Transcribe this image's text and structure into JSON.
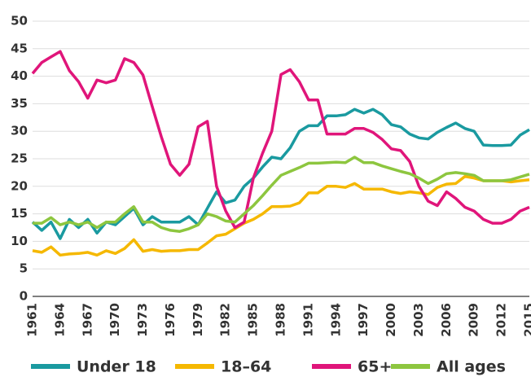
{
  "chart_data": {
    "type": "line",
    "x": [
      1961,
      1962,
      1963,
      1964,
      1965,
      1966,
      1967,
      1968,
      1969,
      1970,
      1971,
      1972,
      1973,
      1974,
      1975,
      1976,
      1977,
      1978,
      1979,
      1980,
      1981,
      1982,
      1983,
      1984,
      1985,
      1986,
      1987,
      1988,
      1989,
      1990,
      1991,
      1992,
      1993,
      1994,
      1995,
      1996,
      1997,
      1998,
      1999,
      2000,
      2001,
      2002,
      2003,
      2004,
      2005,
      2006,
      2007,
      2008,
      2009,
      2010,
      2011,
      2012,
      2013,
      2014,
      2015
    ],
    "series": [
      {
        "name": "Under 18",
        "color": "#1a9aa0",
        "values": [
          13.5,
          12,
          13.5,
          10.5,
          14,
          12.5,
          14,
          11.5,
          13.5,
          13,
          14.5,
          16,
          13,
          14.5,
          13.5,
          13.5,
          13.5,
          14.5,
          13,
          16,
          19,
          17,
          17.5,
          20,
          21.5,
          23.5,
          25.3,
          25,
          27,
          30,
          31,
          31,
          32.8,
          32.8,
          33,
          34,
          33.3,
          34,
          33,
          31.2,
          30.8,
          29.5,
          28.8,
          28.6,
          29.8,
          30.7,
          31.5,
          30.5,
          30,
          27.5,
          27.4,
          27.4,
          27.5,
          29.3,
          30.3
        ]
      },
      {
        "name": "18–64",
        "color": "#f5b800",
        "values": [
          8.3,
          8,
          9,
          7.5,
          7.7,
          7.8,
          8,
          7.5,
          8.3,
          7.8,
          8.7,
          10.3,
          8.2,
          8.5,
          8.2,
          8.3,
          8.3,
          8.5,
          8.5,
          9.7,
          11,
          11.3,
          12.3,
          13.3,
          14,
          15,
          16.3,
          16.3,
          16.4,
          17,
          18.8,
          18.8,
          20,
          20,
          19.8,
          20.5,
          19.5,
          19.5,
          19.5,
          19,
          18.7,
          19,
          18.8,
          18.5,
          19.8,
          20.4,
          20.5,
          21.8,
          21.5,
          21,
          21,
          21,
          20.8,
          21,
          21.2
        ]
      },
      {
        "name": "65+",
        "color": "#e0157a",
        "values": [
          40.5,
          42.5,
          43.5,
          44.5,
          41,
          39,
          36,
          39.3,
          38.8,
          39.3,
          43.2,
          42.5,
          40.2,
          34.5,
          29,
          24,
          22,
          24,
          30.8,
          31.8,
          20,
          15.5,
          12.5,
          13.5,
          21.5,
          26,
          30,
          40.3,
          41.2,
          39,
          35.7,
          35.7,
          29.5,
          29.5,
          29.5,
          30.5,
          30.5,
          29.8,
          28.5,
          26.8,
          26.5,
          24.5,
          20,
          17.3,
          16.5,
          19,
          17.8,
          16.2,
          15.5,
          14,
          13.3,
          13.3,
          14,
          15.5,
          16.2
        ]
      },
      {
        "name": "All ages",
        "color": "#8dc63f",
        "values": [
          13.3,
          13.3,
          14.3,
          13,
          13.5,
          13,
          13.5,
          12.5,
          13.5,
          13.5,
          15,
          16.3,
          13.5,
          13.5,
          12.5,
          12,
          11.8,
          12.3,
          13,
          15,
          14.5,
          13.7,
          13.5,
          15,
          16.5,
          18.3,
          20.2,
          22,
          22.7,
          23.4,
          24.2,
          24.2,
          24.3,
          24.4,
          24.3,
          25.3,
          24.3,
          24.3,
          23.7,
          23.2,
          22.7,
          22.3,
          21.5,
          20.5,
          21.3,
          22.3,
          22.5,
          22.3,
          22,
          21,
          21,
          21,
          21.2,
          21.7,
          22.2
        ]
      }
    ],
    "xlim": [
      1961,
      2015
    ],
    "xticks": [
      1961,
      1964,
      1967,
      1970,
      1973,
      1976,
      1979,
      1982,
      1985,
      1988,
      1991,
      1994,
      1997,
      2000,
      2003,
      2006,
      2009,
      2012,
      2015
    ],
    "ylim": [
      0,
      50
    ],
    "yticks": [
      0,
      5,
      10,
      15,
      20,
      25,
      30,
      35,
      40,
      45,
      50
    ],
    "grid": true
  }
}
